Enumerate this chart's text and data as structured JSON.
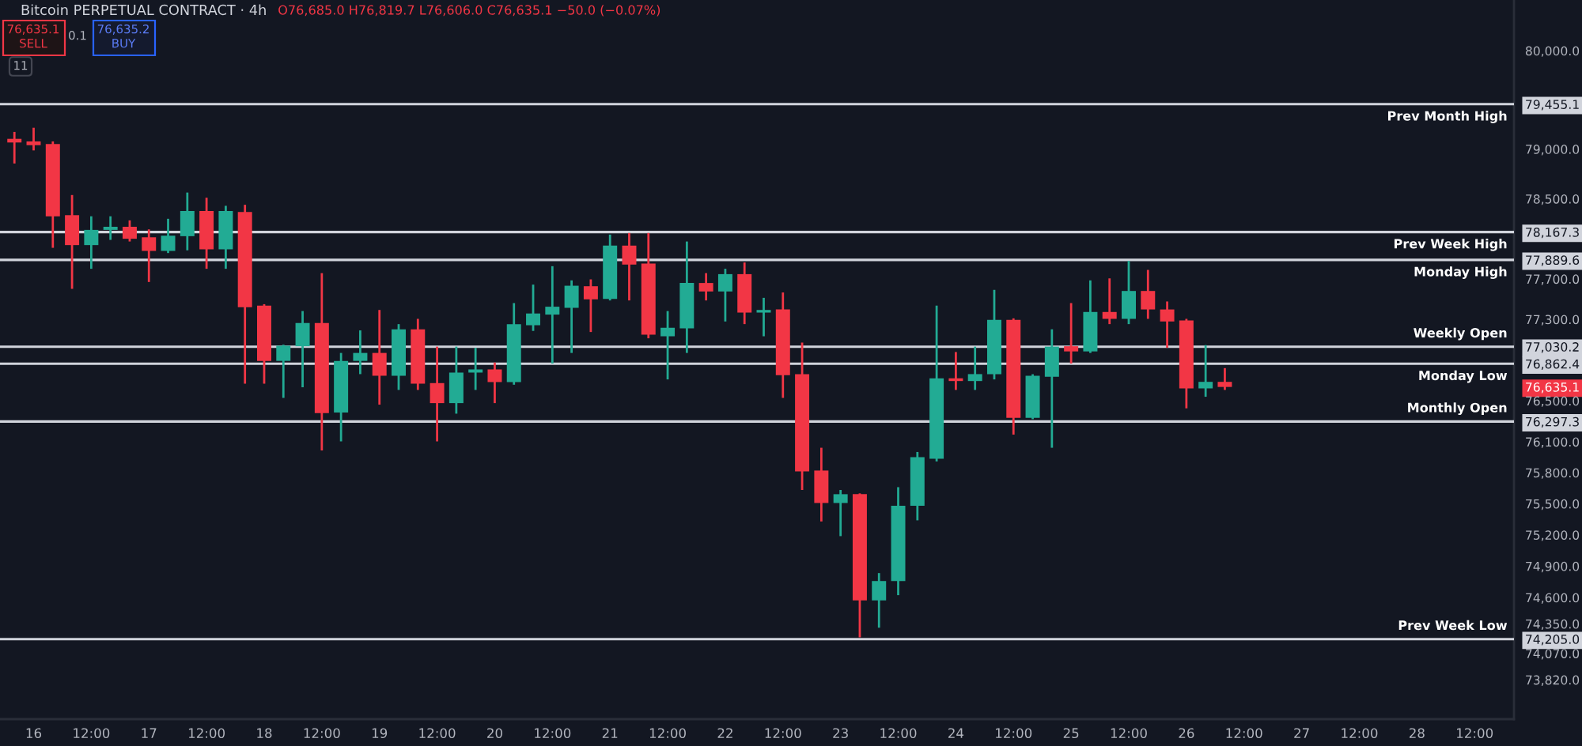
{
  "chart_data": {
    "type": "candlestick",
    "title": "Bitcoin PERPETUAL CONTRACT · 4h",
    "annotations": [
      "O76,685.0 H76,819.7 L76,606.0 C76,635.1 −50.0 (−0.07%)",
      "76,635.1",
      "SELL",
      "0.1",
      "76,635.2",
      "BUY",
      "11"
    ],
    "categories": [
      null,
      "16",
      null,
      null,
      "12:00",
      null,
      null,
      "17",
      null,
      null,
      "12:00",
      null,
      null,
      "18",
      null,
      null,
      "12:00",
      null,
      null,
      "19",
      null,
      null,
      "12:00",
      null,
      null,
      "20",
      null,
      null,
      "12:00",
      null,
      null,
      "21",
      null,
      null,
      "12:00",
      null,
      null,
      "22",
      null,
      null,
      "12:00",
      null,
      null,
      "23",
      null,
      null,
      "12:00",
      null,
      null,
      "24",
      null,
      null,
      "12:00",
      null,
      null,
      "25",
      null,
      null,
      "12:00",
      null,
      null,
      "26",
      null,
      null,
      "12:00",
      null,
      null,
      "27",
      null,
      null,
      "12:00",
      null,
      null,
      "28",
      null,
      null,
      "12:00",
      null,
      null
    ],
    "ohlc": [
      [
        79104,
        79174,
        78855,
        79067
      ],
      [
        79078,
        79216,
        78987,
        79040
      ],
      [
        79051,
        79078,
        78010,
        78325
      ],
      [
        78336,
        78538,
        77602,
        78037
      ],
      [
        78037,
        78325,
        77801,
        78189
      ],
      [
        78189,
        78325,
        78089,
        78220
      ],
      [
        78220,
        78284,
        78073,
        78100
      ],
      [
        78115,
        78194,
        77670,
        77979
      ],
      [
        77979,
        78300,
        77958,
        78131
      ],
      [
        78126,
        78563,
        77985,
        78378
      ],
      [
        78378,
        78511,
        77801,
        77995
      ],
      [
        77995,
        78430,
        77801,
        78378
      ],
      [
        78367,
        78440,
        76667,
        77420
      ],
      [
        77436,
        77450,
        76667,
        76891
      ],
      [
        76891,
        77050,
        76528,
        77040
      ],
      [
        77035,
        77382,
        76632,
        77264
      ],
      [
        77264,
        77758,
        76016,
        76380
      ],
      [
        76385,
        76969,
        76104,
        76891
      ],
      [
        76891,
        77191,
        76761,
        76969
      ],
      [
        76969,
        77393,
        76462,
        76745
      ],
      [
        76745,
        77253,
        76606,
        77202
      ],
      [
        77202,
        77305,
        76606,
        76667
      ],
      [
        76673,
        77031,
        76104,
        76477
      ],
      [
        76477,
        77031,
        76374,
        76776
      ],
      [
        76776,
        77020,
        76606,
        76807
      ],
      [
        76807,
        76875,
        76477,
        76683
      ],
      [
        76683,
        77461,
        76657,
        77253
      ],
      [
        77242,
        77644,
        77186,
        77358
      ],
      [
        77347,
        77827,
        76865,
        77425
      ],
      [
        77414,
        77686,
        76969,
        77633
      ],
      [
        77628,
        77696,
        77175,
        77498
      ],
      [
        77503,
        78142,
        77487,
        78032
      ],
      [
        78032,
        78158,
        77487,
        77843
      ],
      [
        77853,
        78158,
        77113,
        77149
      ],
      [
        77133,
        77382,
        76709,
        77217
      ],
      [
        77212,
        78073,
        76969,
        77660
      ],
      [
        77660,
        77758,
        77487,
        77576
      ],
      [
        77576,
        77801,
        77279,
        77748
      ],
      [
        77748,
        77864,
        77253,
        77367
      ],
      [
        77367,
        77513,
        77133,
        77393
      ],
      [
        77398,
        77566,
        76528,
        76751
      ],
      [
        76761,
        77071,
        75633,
        75812
      ],
      [
        75821,
        76042,
        75329,
        75507
      ],
      [
        75507,
        75633,
        75188,
        75592
      ],
      [
        75592,
        75600,
        74222,
        74573
      ],
      [
        74573,
        74834,
        74313,
        74758
      ],
      [
        74758,
        75660,
        74623,
        75481
      ],
      [
        75481,
        76001,
        75340,
        75951
      ],
      [
        75935,
        77436,
        75909,
        76720
      ],
      [
        76720,
        76978,
        76606,
        76693
      ],
      [
        76693,
        77031,
        76606,
        76761
      ],
      [
        76761,
        77592,
        76709,
        77296
      ],
      [
        77296,
        77310,
        76170,
        76334
      ],
      [
        76334,
        76760,
        76320,
        76745
      ],
      [
        76735,
        77202,
        76042,
        77031
      ],
      [
        77035,
        77461,
        76865,
        76984
      ],
      [
        76984,
        77686,
        76969,
        77373
      ],
      [
        77373,
        77706,
        77253,
        77305
      ],
      [
        77305,
        77880,
        77253,
        77581
      ],
      [
        77581,
        77790,
        77305,
        77398
      ],
      [
        77398,
        77477,
        77020,
        77279
      ],
      [
        77289,
        77305,
        76426,
        76621
      ],
      [
        76621,
        77046,
        76539,
        76685.1
      ],
      [
        76685.0,
        76819.7,
        76606.0,
        76635.1
      ],
      null,
      null,
      null,
      null,
      null,
      null,
      null,
      null,
      null,
      null,
      null,
      null,
      null,
      null,
      null
    ],
    "colors": [
      "#f23645",
      "#f23645",
      "#f23645",
      "#f23645",
      "#22ab94",
      "#22ab94",
      "#f23645",
      "#f23645",
      "#22ab94",
      "#22ab94",
      "#f23645",
      "#22ab94",
      "#f23645",
      "#f23645",
      "#22ab94",
      "#22ab94",
      "#f23645",
      "#22ab94",
      "#22ab94",
      "#f23645",
      "#22ab94",
      "#f23645",
      "#f23645",
      "#22ab94",
      "#22ab94",
      "#f23645",
      "#22ab94",
      "#22ab94",
      "#22ab94",
      "#22ab94",
      "#f23645",
      "#22ab94",
      "#f23645",
      "#f23645",
      "#22ab94",
      "#22ab94",
      "#f23645",
      "#22ab94",
      "#f23645",
      "#22ab94",
      "#f23645",
      "#f23645",
      "#f23645",
      "#22ab94",
      "#f23645",
      "#22ab94",
      "#22ab94",
      "#22ab94",
      "#22ab94",
      "#f23645",
      "#22ab94",
      "#22ab94",
      "#f23645",
      "#22ab94",
      "#22ab94",
      "#f23645",
      "#22ab94",
      "#f23645",
      "#22ab94",
      "#f23645",
      "#f23645",
      "#f23645",
      "#22ab94",
      "#f23645",
      null,
      null,
      null,
      null,
      null,
      null,
      null,
      null,
      null,
      null,
      null,
      null,
      null,
      null,
      null
    ],
    "log": true,
    "ylim": [
      73450,
      80520
    ],
    "yticks": [
      {
        "value": 80000,
        "label": "80,000.0"
      },
      {
        "value": 79455.1,
        "label": "79,455.1"
      },
      {
        "value": 79000,
        "label": "79,000.0"
      },
      {
        "value": 78500,
        "label": "78,500.0"
      },
      {
        "value": 78167.3,
        "label": "78,167.3"
      },
      {
        "value": 77889.6,
        "label": "77,889.6"
      },
      {
        "value": 77700,
        "label": "77,700.0"
      },
      {
        "value": 77300,
        "label": "77,300.0"
      },
      {
        "value": 77030.2,
        "label": "77,030.2"
      },
      {
        "value": 76862.4,
        "label": "76,862.4"
      },
      {
        "value": 76635.1,
        "label": "76,635.1"
      },
      {
        "value": 76500,
        "label": "76,500.0"
      },
      {
        "value": 76297.3,
        "label": "76,297.3"
      },
      {
        "value": 76100,
        "label": "76,100.0"
      },
      {
        "value": 75800,
        "label": "75,800.0"
      },
      {
        "value": 75500,
        "label": "75,500.0"
      },
      {
        "value": 75200,
        "label": "75,200.0"
      },
      {
        "value": 74900,
        "label": "74,900.0"
      },
      {
        "value": 74600,
        "label": "74,600.0"
      },
      {
        "value": 74350,
        "label": "74,350.0"
      },
      {
        "value": 74205.0,
        "label": "74,205.0"
      },
      {
        "value": 74070,
        "label": "74,070.0"
      },
      {
        "value": 73820,
        "label": "73,820.0"
      }
    ],
    "ref_lines": [
      {
        "axis": "y",
        "value": 79455.1,
        "label": "Prev Month High",
        "color": "#d1d4dc"
      },
      {
        "axis": "y",
        "value": 78167.3,
        "label": "Prev Week High",
        "color": "#d1d4dc"
      },
      {
        "axis": "y",
        "value": 77889.6,
        "label": "Monday High",
        "color": "#d1d4dc"
      },
      {
        "axis": "y",
        "value": 77030.2,
        "label": "Weekly Open",
        "color": "#d1d4dc"
      },
      {
        "axis": "y",
        "value": 76862.4,
        "label": "Monday Low",
        "color": "#d1d4dc"
      },
      {
        "axis": "y",
        "value": 76297.3,
        "label": "Monthly Open",
        "color": "#d1d4dc"
      },
      {
        "axis": "y",
        "value": 74205.0,
        "label": "Prev Week Low",
        "color": "#d1d4dc"
      }
    ]
  }
}
